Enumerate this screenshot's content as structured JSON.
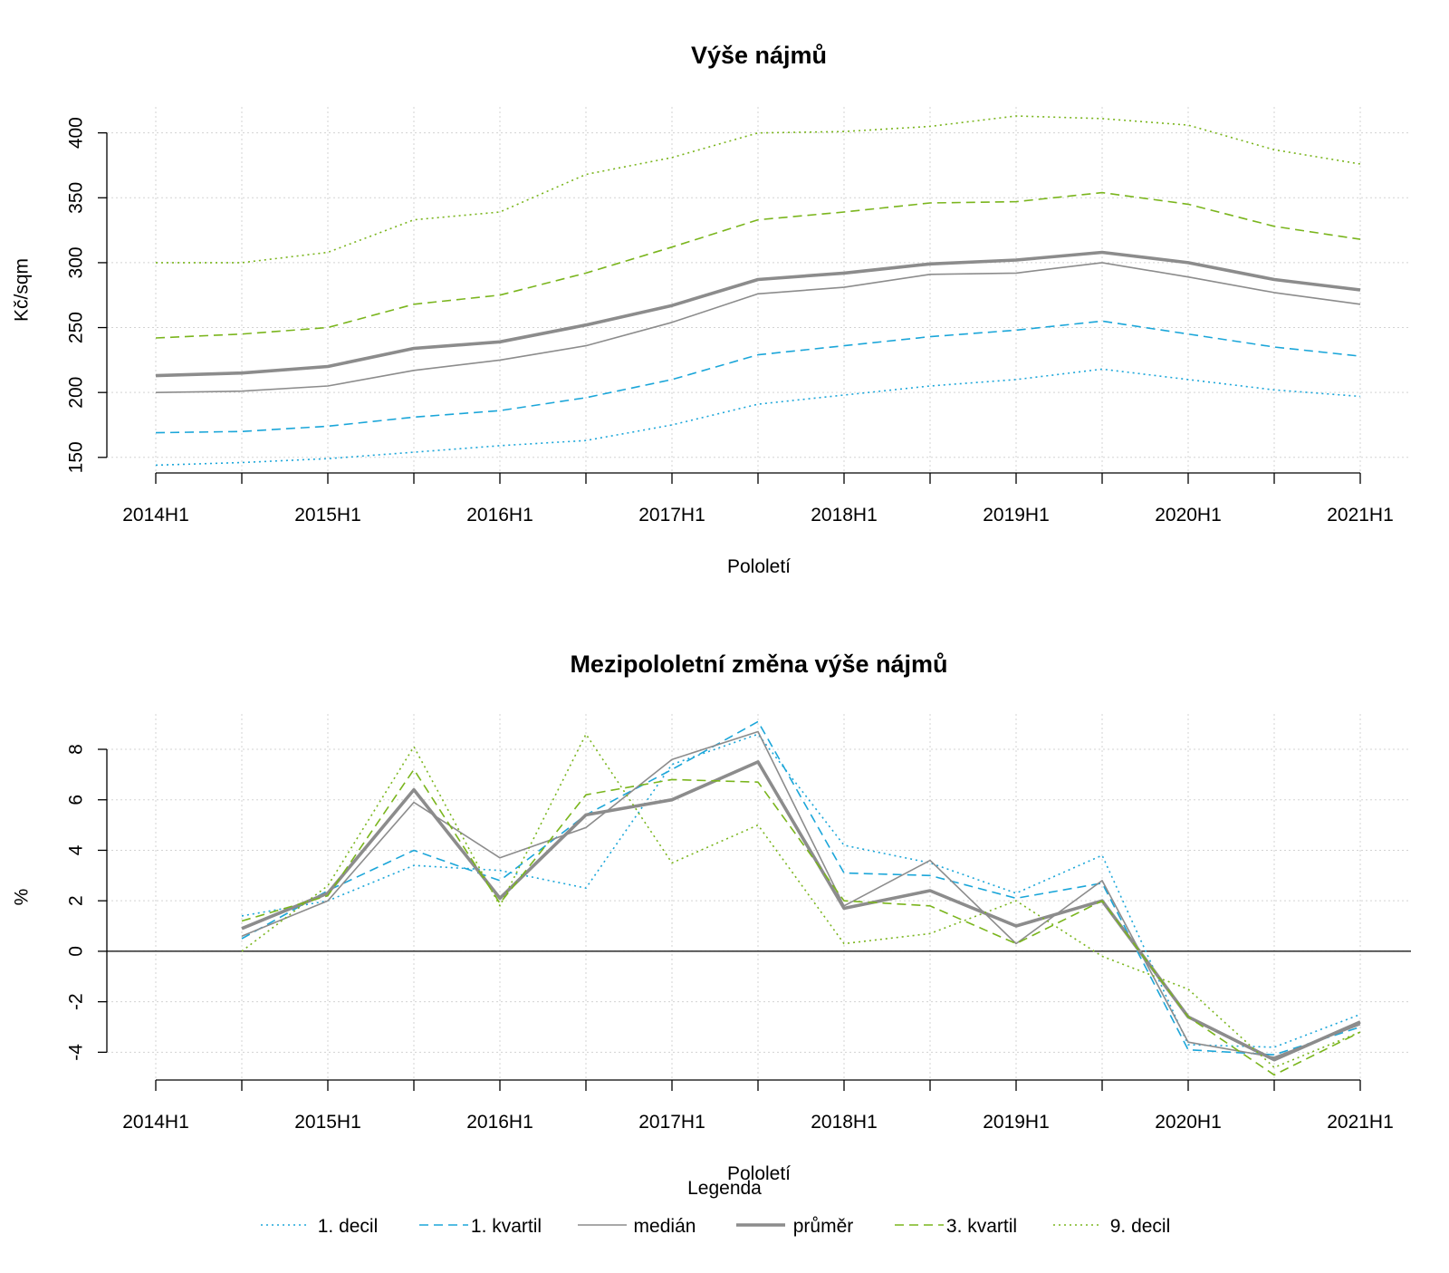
{
  "styles": {
    "1. decil": {
      "color": "#1ba6d9",
      "dash": "2,4",
      "width": 1.6
    },
    "1. kvartil": {
      "color": "#1ba6d9",
      "dash": "10,6",
      "width": 1.6
    },
    "medián": {
      "color": "#8c8c8c",
      "dash": "",
      "width": 1.6
    },
    "průměr": {
      "color": "#8c8c8c",
      "dash": "",
      "width": 3.6
    },
    "3. kvartil": {
      "color": "#7ab51d",
      "dash": "10,6",
      "width": 1.6
    },
    "9. decil": {
      "color": "#7ab51d",
      "dash": "2,4",
      "width": 1.6
    }
  },
  "legend": {
    "title": "Legenda",
    "items": [
      "1. decil",
      "1. kvartil",
      "medián",
      "průměr",
      "3. kvartil",
      "9. decil"
    ]
  },
  "chart_data": [
    {
      "type": "line",
      "title": "Výše nájmů",
      "xlabel": "Pololetí",
      "ylabel": "Kč/sqm",
      "x": [
        "2014H1",
        "2014H2",
        "2015H1",
        "2015H2",
        "2016H1",
        "2016H2",
        "2017H1",
        "2017H2",
        "2018H1",
        "2018H2",
        "2019H1",
        "2019H2",
        "2020H1",
        "2020H2",
        "2021H1"
      ],
      "xticklabels": [
        "2014H1",
        "2015H1",
        "2016H1",
        "2017H1",
        "2018H1",
        "2019H1",
        "2020H1",
        "2021H1"
      ],
      "yticks": [
        150,
        200,
        250,
        300,
        350,
        400
      ],
      "ylim": [
        138,
        420
      ],
      "grid": true,
      "series": [
        {
          "name": "1. decil",
          "values": [
            144,
            146,
            149,
            154,
            159,
            163,
            175,
            191,
            198,
            205,
            210,
            218,
            210,
            202,
            197
          ]
        },
        {
          "name": "1. kvartil",
          "values": [
            169,
            170,
            174,
            181,
            186,
            196,
            210,
            229,
            236,
            243,
            248,
            255,
            245,
            235,
            228
          ]
        },
        {
          "name": "medián",
          "values": [
            200,
            201,
            205,
            217,
            225,
            236,
            254,
            276,
            281,
            291,
            292,
            300,
            289,
            277,
            268
          ]
        },
        {
          "name": "průměr",
          "values": [
            213,
            215,
            220,
            234,
            239,
            252,
            267,
            287,
            292,
            299,
            302,
            308,
            300,
            287,
            279
          ]
        },
        {
          "name": "3. kvartil",
          "values": [
            242,
            245,
            250,
            268,
            275,
            292,
            312,
            333,
            339,
            346,
            347,
            354,
            345,
            328,
            318
          ]
        },
        {
          "name": "9. decil",
          "values": [
            300,
            300,
            308,
            333,
            339,
            368,
            381,
            400,
            401,
            405,
            413,
            411,
            406,
            387,
            376
          ]
        }
      ]
    },
    {
      "type": "line",
      "title": "Mezipololetní změna výše nájmů",
      "xlabel": "Pololetí",
      "ylabel": "%",
      "x": [
        "2014H1",
        "2014H2",
        "2015H1",
        "2015H2",
        "2016H1",
        "2016H2",
        "2017H1",
        "2017H2",
        "2018H1",
        "2018H2",
        "2019H1",
        "2019H2",
        "2020H1",
        "2020H2",
        "2021H1"
      ],
      "xticklabels": [
        "2014H1",
        "2015H1",
        "2016H1",
        "2017H1",
        "2018H1",
        "2019H1",
        "2020H1",
        "2021H1"
      ],
      "yticks": [
        -4,
        -2,
        0,
        2,
        4,
        6,
        8
      ],
      "ylim": [
        -5.1,
        9.4
      ],
      "grid": true,
      "zero_line": true,
      "series": [
        {
          "name": "1. decil",
          "values": [
            null,
            1.4,
            2.0,
            3.4,
            3.2,
            2.5,
            7.4,
            8.6,
            4.2,
            3.5,
            2.3,
            3.8,
            -3.7,
            -3.8,
            -2.5
          ]
        },
        {
          "name": "1. kvartil",
          "values": [
            null,
            0.5,
            2.4,
            4.0,
            2.8,
            5.4,
            7.2,
            9.1,
            3.1,
            3.0,
            2.1,
            2.7,
            -3.9,
            -4.1,
            -3.0
          ]
        },
        {
          "name": "medián",
          "values": [
            null,
            0.6,
            2.0,
            5.9,
            3.7,
            4.9,
            7.6,
            8.7,
            1.8,
            3.6,
            0.3,
            2.8,
            -3.6,
            -4.2,
            -2.9
          ]
        },
        {
          "name": "průměr",
          "values": [
            null,
            0.9,
            2.3,
            6.4,
            2.1,
            5.4,
            6.0,
            7.5,
            1.7,
            2.4,
            1.0,
            2.0,
            -2.6,
            -4.3,
            -2.8
          ]
        },
        {
          "name": "3. kvartil",
          "values": [
            null,
            1.2,
            2.2,
            7.2,
            1.9,
            6.2,
            6.8,
            6.7,
            2.0,
            1.8,
            0.3,
            2.0,
            -2.6,
            -4.9,
            -3.2
          ]
        },
        {
          "name": "9. decil",
          "values": [
            null,
            0.0,
            2.6,
            8.1,
            1.8,
            8.6,
            3.5,
            5.0,
            0.3,
            0.7,
            2.0,
            -0.2,
            -1.5,
            -4.6,
            -3.2
          ]
        }
      ]
    }
  ]
}
